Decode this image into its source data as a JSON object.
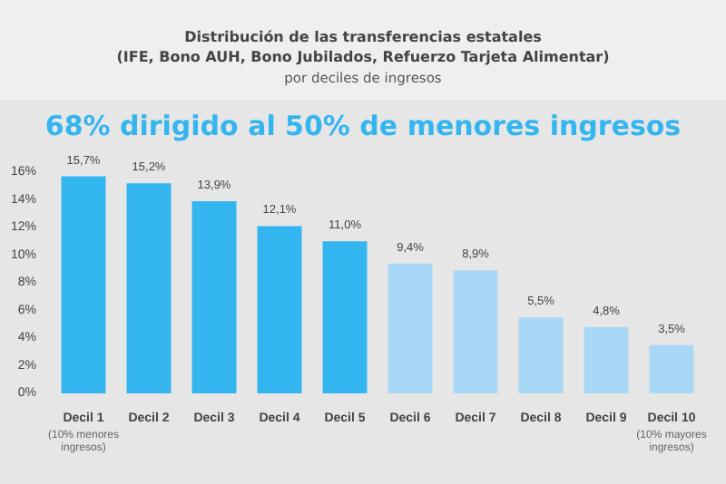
{
  "chart_data": {
    "type": "bar",
    "title": "Distribución de las transferencias estatales\n(IFE, Bono AUH, Bono Jubilados, Refuerzo Tarjeta Alimentar)",
    "subtitle": "por deciles de ingresos",
    "annotations": [
      "68% dirigido al 50% de menores ingresos"
    ],
    "categories": [
      "Decil 1\n(10% menores\ningresos)",
      "Decil 2",
      "Decil 3",
      "Decil 4",
      "Decil 5",
      "Decil 6",
      "Decil 7",
      "Decil 8",
      "Decil 9",
      "Decil 10\n(10% mayores\ningresos)"
    ],
    "values": [
      15.7,
      15.2,
      13.9,
      12.1,
      11.0,
      9.4,
      8.9,
      5.5,
      4.8,
      3.5
    ],
    "value_labels": [
      "15,7%",
      "15,2%",
      "13,9%",
      "12,1%",
      "11,0%",
      "9,4%",
      "8,9%",
      "5,5%",
      "4,8%",
      "3,5%"
    ],
    "colors": [
      "#33b5ef",
      "#33b5ef",
      "#33b5ef",
      "#33b5ef",
      "#33b5ef",
      "#a8d8f5",
      "#a8d8f5",
      "#a8d8f5",
      "#a8d8f5",
      "#a8d8f5"
    ],
    "ylim": [
      0,
      16
    ],
    "yticks": [
      {
        "value": 0,
        "label": "0%"
      },
      {
        "value": 2,
        "label": "2%"
      },
      {
        "value": 4,
        "label": "4%"
      },
      {
        "value": 6,
        "label": "6%"
      },
      {
        "value": 8,
        "label": "8%"
      },
      {
        "value": 10,
        "label": "10%"
      },
      {
        "value": 12,
        "label": "12%"
      },
      {
        "value": 14,
        "label": "14%"
      },
      {
        "value": 16,
        "label": "16%"
      }
    ],
    "grid": false
  }
}
